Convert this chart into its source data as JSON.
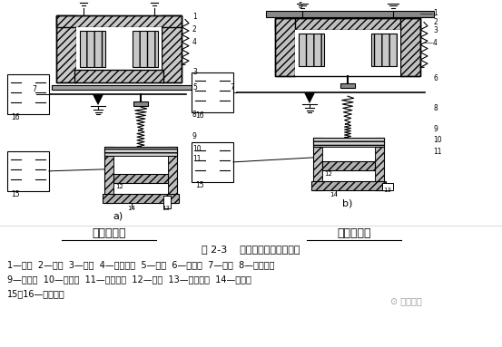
{
  "title": "图 2-3    空气阻尼式时间继电器",
  "label_left": "通电延时型",
  "label_right": "断电延时型",
  "caption_line1": "1—线圈  2—铁心  3—衔铁  4—反力弹簧  5—推板  6—活塞杆  7—杠杆  8—塔形弹簧",
  "caption_line2": "9—弱弹簧  10—橡皮膜  11—空气室壁  12—活塞  13—调节螺杆  14—进气孔",
  "caption_line3": "15、16—微动开关",
  "watermark": "⊙ 电工之家",
  "fig_width": 5.53,
  "fig_height": 3.83,
  "dpi": 100
}
